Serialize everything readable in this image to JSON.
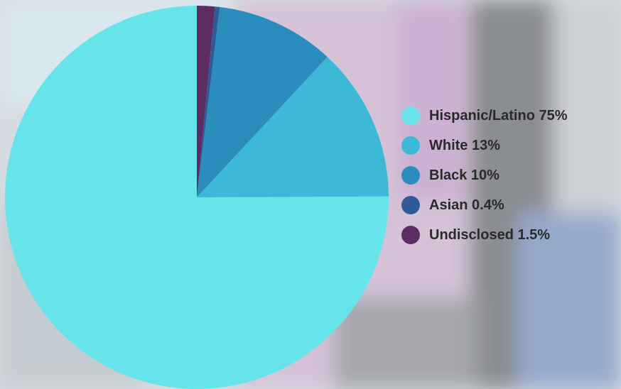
{
  "chart_data": {
    "type": "pie",
    "title": "",
    "slices": [
      {
        "label": "Hispanic/Latino",
        "value": 75,
        "legend_text": "Hispanic/Latino 75%",
        "color": "#67e4e9"
      },
      {
        "label": "White",
        "value": 13,
        "legend_text": "White 13%",
        "color": "#3eb8d7"
      },
      {
        "label": "Black",
        "value": 10,
        "legend_text": "Black 10%",
        "color": "#2a8dbd"
      },
      {
        "label": "Asian",
        "value": 0.4,
        "legend_text": "Asian 0.4%",
        "color": "#2c5b97"
      },
      {
        "label": "Undisclosed",
        "value": 1.5,
        "legend_text": "Undisclosed 1.5%",
        "color": "#5b2d62"
      }
    ],
    "legend_position": "right",
    "start_angle": "top, counter-clockwise"
  }
}
